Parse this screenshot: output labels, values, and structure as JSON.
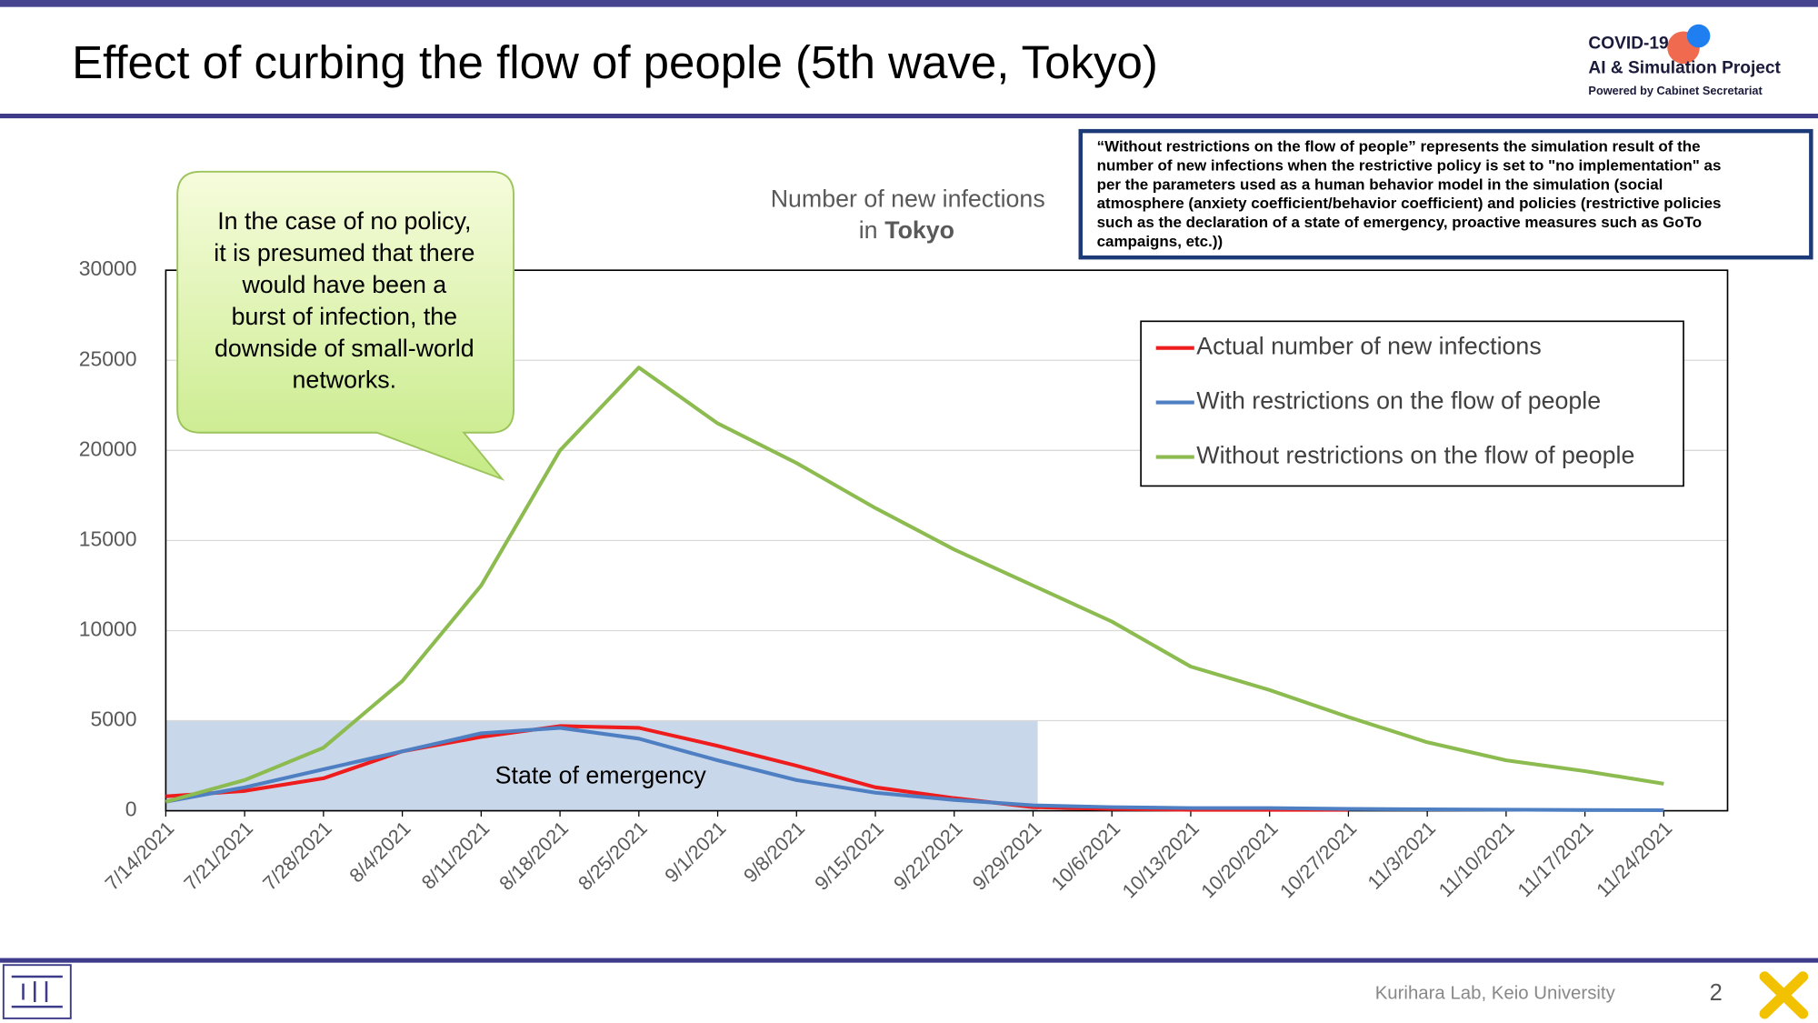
{
  "header": {
    "title": "Effect of curbing the flow of people (5th wave, Tokyo)",
    "logo": {
      "line1": "COVID-19",
      "line2": "AI & Simulation Project",
      "line3": "Powered by Cabinet Secretariat"
    }
  },
  "note": {
    "lines": [
      "“Without restrictions on the flow of people” represents the simulation result of the",
      "number of new infections when the restrictive policy is set to \"no implementation\" as",
      "per the parameters used as a human behavior model in the simulation (social",
      "atmosphere (anxiety coefficient/behavior coefficient) and policies (restrictive policies",
      "such as the declaration of a state of emergency, proactive measures such as GoTo",
      "campaigns, etc.))"
    ]
  },
  "callout": {
    "lines": [
      "In the case of no policy,",
      "it is presumed that there",
      "would have been a",
      "burst of infection, the",
      "downside of small-world",
      "networks."
    ]
  },
  "chart_data": {
    "type": "line",
    "title_lines": [
      "Number of new infections",
      "in"
    ],
    "title_emphasis": "Tokyo",
    "x": [
      "7/14/2021",
      "7/21/2021",
      "7/28/2021",
      "8/4/2021",
      "8/11/2021",
      "8/18/2021",
      "8/25/2021",
      "9/1/2021",
      "9/8/2021",
      "9/15/2021",
      "9/22/2021",
      "9/29/2021",
      "10/6/2021",
      "10/13/2021",
      "10/20/2021",
      "10/27/2021",
      "11/3/2021",
      "11/10/2021",
      "11/17/2021",
      "11/24/2021"
    ],
    "series": [
      {
        "name": "Actual number of new infections",
        "color": "#ee1c1c",
        "values": [
          800,
          1100,
          1800,
          3300,
          4100,
          4700,
          4600,
          3600,
          2500,
          1300,
          700,
          200,
          100,
          50,
          50,
          50,
          null,
          null,
          null,
          null
        ]
      },
      {
        "name": "With restrictions on the flow of people",
        "color": "#4f7fc3",
        "values": [
          500,
          1300,
          2300,
          3300,
          4300,
          4600,
          4000,
          2800,
          1700,
          1000,
          600,
          300,
          200,
          150,
          150,
          100,
          80,
          60,
          40,
          30
        ]
      },
      {
        "name": "Without restrictions on the flow of people",
        "color": "#8cbb4f",
        "values": [
          500,
          1700,
          3500,
          7200,
          12500,
          20000,
          24600,
          21500,
          19300,
          16800,
          14500,
          12500,
          10500,
          8000,
          6700,
          5200,
          3800,
          2800,
          2200,
          1500
        ]
      }
    ],
    "ylim": [
      0,
      30000
    ],
    "yticks": [
      0,
      5000,
      10000,
      15000,
      20000,
      25000,
      30000
    ],
    "grid": true,
    "legend": "top-right",
    "emergency": {
      "label": "State of emergency",
      "start": "7/14/2021",
      "end": "9/29/2021",
      "ymax": 5000,
      "color": "#c9d7ea"
    }
  },
  "footer": {
    "credit": "Kurihara Lab, Keio University",
    "page": "2"
  }
}
